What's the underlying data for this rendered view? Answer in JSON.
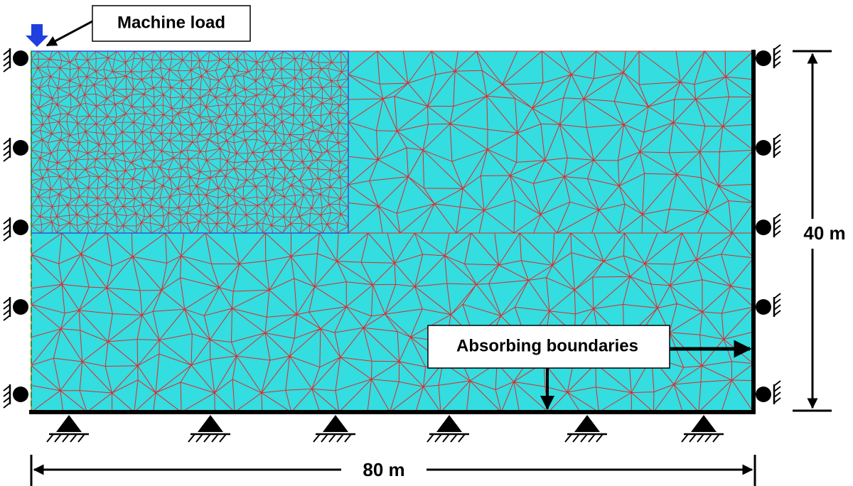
{
  "annotations": {
    "load": "Machine load",
    "boundaries": "Absorbing boundaries"
  },
  "dimensions": {
    "height": "40 m",
    "width": "80 m"
  }
}
